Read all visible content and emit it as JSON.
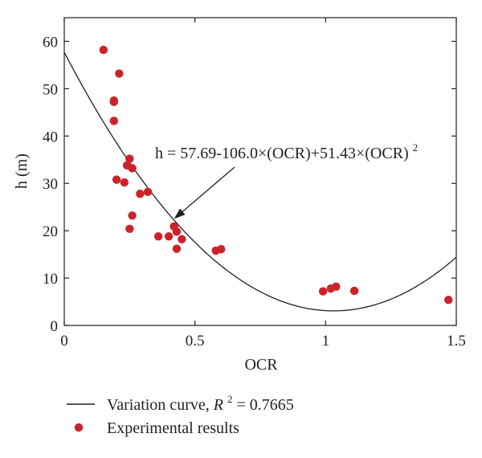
{
  "chart_data": {
    "type": "scatter",
    "xlabel": "OCR",
    "ylabel": "h (m)",
    "xlim": [
      0,
      1.5
    ],
    "ylim": [
      0,
      65
    ],
    "x_ticks": [
      0,
      0.5,
      1,
      1.5
    ],
    "x_tick_labels": [
      "0",
      "0.5",
      "1",
      "1.5"
    ],
    "y_ticks": [
      0,
      10,
      20,
      30,
      40,
      50,
      60
    ],
    "y_tick_labels": [
      "0",
      "10",
      "20",
      "30",
      "40",
      "50",
      "60"
    ],
    "grid": false,
    "legend_position": "bottom",
    "colors": {
      "points": "#cc2229",
      "curve": "#231f20",
      "axes": "#231f20"
    },
    "annotation": {
      "text_main": "h = 57.69-106.0×(OCR)+51.43×(OCR)",
      "text_superscript": "2",
      "arrow_target": {
        "x": 0.42,
        "y": 22.5
      }
    },
    "curve": {
      "name_prefix": "Variation curve, ",
      "name_var": "R",
      "name_sup": "2",
      "name_suffix": " = 0.7665",
      "coefficients": {
        "a": 57.69,
        "b": -106.0,
        "c": 51.43
      },
      "x_range": [
        0,
        1.5
      ]
    },
    "series": [
      {
        "name": "Experimental results",
        "points": [
          {
            "x": 0.15,
            "y": 58.2
          },
          {
            "x": 0.21,
            "y": 53.2
          },
          {
            "x": 0.19,
            "y": 47.5
          },
          {
            "x": 0.19,
            "y": 47.2
          },
          {
            "x": 0.19,
            "y": 43.2
          },
          {
            "x": 0.25,
            "y": 35.2
          },
          {
            "x": 0.24,
            "y": 33.8
          },
          {
            "x": 0.26,
            "y": 33.2
          },
          {
            "x": 0.2,
            "y": 30.8
          },
          {
            "x": 0.23,
            "y": 30.2
          },
          {
            "x": 0.32,
            "y": 28.2
          },
          {
            "x": 0.29,
            "y": 27.8
          },
          {
            "x": 0.26,
            "y": 23.2
          },
          {
            "x": 0.25,
            "y": 20.4
          },
          {
            "x": 0.42,
            "y": 20.9
          },
          {
            "x": 0.43,
            "y": 19.8
          },
          {
            "x": 0.36,
            "y": 18.8
          },
          {
            "x": 0.4,
            "y": 18.8
          },
          {
            "x": 0.45,
            "y": 18.2
          },
          {
            "x": 0.43,
            "y": 16.2
          },
          {
            "x": 0.58,
            "y": 15.8
          },
          {
            "x": 0.6,
            "y": 16.1
          },
          {
            "x": 0.99,
            "y": 7.2
          },
          {
            "x": 1.02,
            "y": 7.8
          },
          {
            "x": 1.04,
            "y": 8.2
          },
          {
            "x": 1.11,
            "y": 7.3
          },
          {
            "x": 1.47,
            "y": 5.4
          }
        ]
      }
    ]
  }
}
